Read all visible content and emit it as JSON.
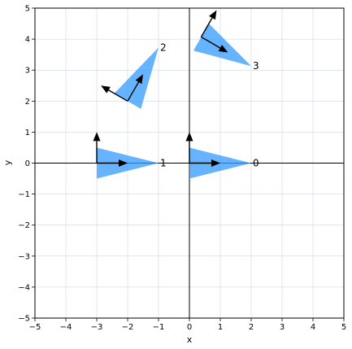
{
  "chart_data": {
    "type": "scatter",
    "title": "",
    "xlabel": "x",
    "ylabel": "y",
    "xlim": [
      -5,
      5
    ],
    "ylim": [
      -5,
      5
    ],
    "x_ticks": [
      -5,
      -4,
      -3,
      -2,
      -1,
      0,
      1,
      2,
      3,
      4,
      5
    ],
    "y_ticks": [
      -5,
      -4,
      -3,
      -2,
      -1,
      0,
      1,
      2,
      3,
      4,
      5
    ],
    "grid": true,
    "fill_color": "#3399ff",
    "arrow_color": "#000000",
    "triangles": [
      {
        "label": "0",
        "vertices": [
          [
            0,
            0.5
          ],
          [
            2,
            0
          ],
          [
            0,
            -0.5
          ]
        ],
        "label_at": [
          2,
          0
        ],
        "origin": [
          0,
          0
        ],
        "arrows": [
          [
            1,
            0
          ],
          [
            0,
            1
          ]
        ]
      },
      {
        "label": "1",
        "vertices": [
          [
            -3,
            0.5
          ],
          [
            -1,
            0
          ],
          [
            -3,
            -0.5
          ]
        ],
        "label_at": [
          -1,
          0
        ],
        "origin": [
          -3,
          0
        ],
        "arrows": [
          [
            1,
            0
          ],
          [
            0,
            1
          ]
        ]
      },
      {
        "label": "2",
        "vertices": [
          [
            -2.43,
            2.25
          ],
          [
            -1,
            3.73
          ],
          [
            -1.57,
            1.75
          ]
        ],
        "label_at": [
          -1,
          3.73
        ],
        "origin": [
          -2,
          2
        ],
        "arrows": [
          [
            0.5,
            0.866
          ],
          [
            -0.866,
            0.5
          ]
        ]
      },
      {
        "label": "3",
        "vertices": [
          [
            0.13,
            3.63
          ],
          [
            2,
            3.13
          ],
          [
            0.63,
            4.5
          ]
        ],
        "label_at": [
          2,
          3.13
        ],
        "origin": [
          0.38,
          4.07
        ],
        "arrows": [
          [
            0.866,
            -0.5
          ],
          [
            0.5,
            0.866
          ]
        ]
      }
    ]
  }
}
